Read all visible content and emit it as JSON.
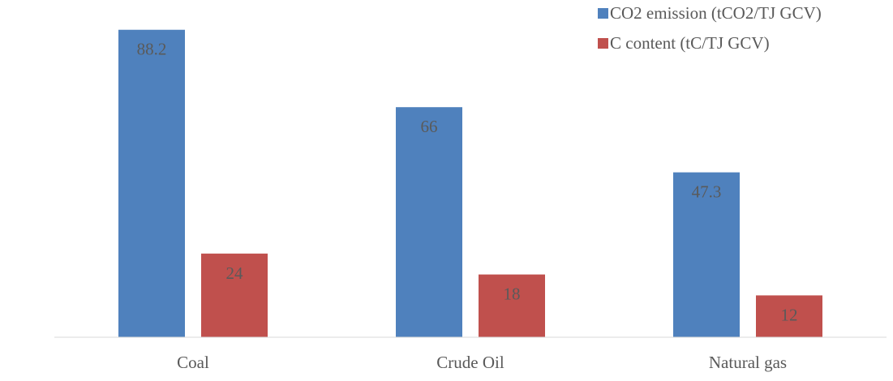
{
  "chart_data": {
    "type": "bar",
    "title": "",
    "xlabel": "",
    "ylabel": "",
    "categories": [
      "Coal",
      "Crude Oil",
      "Natural gas"
    ],
    "series": [
      {
        "name": "CO2 emission (tCO2/TJ GCV)",
        "values": [
          88.2,
          66,
          47.3
        ],
        "labels": [
          "88.2",
          "66",
          "47.3"
        ],
        "color": "#4f81bd"
      },
      {
        "name": "C content (tC/TJ GCV)",
        "values": [
          24,
          18,
          12
        ],
        "labels": [
          "24",
          "18",
          "12"
        ],
        "color": "#c0504d"
      }
    ],
    "ylim": [
      0,
      90
    ],
    "grid": false,
    "legend_position": "top-right",
    "data_labels": "inside-top"
  }
}
